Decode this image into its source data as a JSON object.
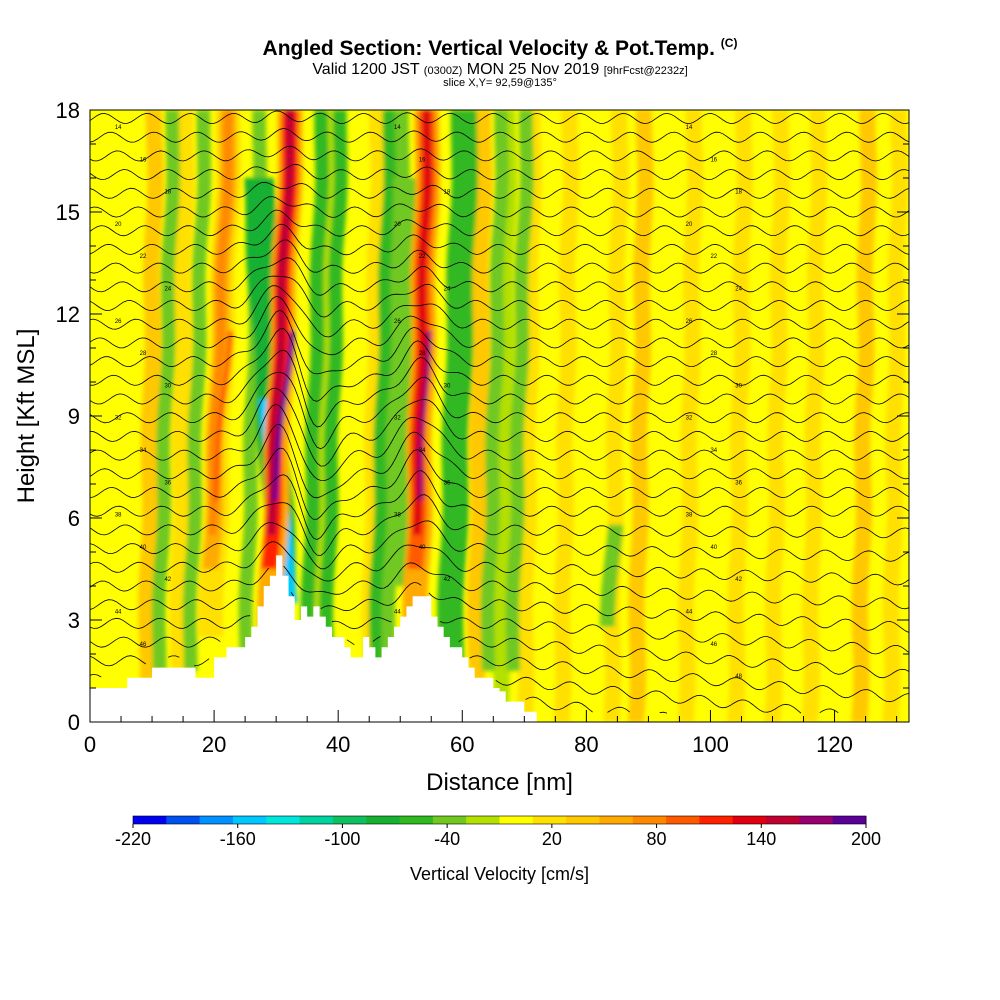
{
  "title": {
    "main": "Angled Section: Vertical Velocity & Pot.Temp.",
    "main_tag": "(C)",
    "valid_prefix": "Valid 1200 JST",
    "valid_z": "(0300Z)",
    "valid_date": "MON 25 Nov 2019",
    "forecast": "[9hrFcst@2232z]",
    "slice": "slice X,Y= 92,59@135°"
  },
  "chart_data": {
    "type": "heatmap",
    "xlabel": "Distance [nm]",
    "ylabel": "Height [Kft MSL]",
    "xlim": [
      0,
      132
    ],
    "ylim": [
      0,
      18
    ],
    "x_ticks": [
      0,
      20,
      40,
      60,
      80,
      100,
      120
    ],
    "y_ticks": [
      0,
      3,
      6,
      9,
      12,
      15,
      18
    ],
    "colorbar": {
      "label": "Vertical Velocity [cm/s]",
      "min": -220,
      "max": 200,
      "step": 20,
      "tick_values": [
        -220,
        -160,
        -100,
        -40,
        20,
        80,
        140,
        200
      ],
      "tick_labels": [
        "-220",
        "-160",
        "-100",
        "-40",
        "20",
        "80",
        "140",
        "200"
      ],
      "colors": [
        "#0000f0",
        "#0050f0",
        "#0090ff",
        "#00c8ff",
        "#00e6dc",
        "#00d2a0",
        "#10c060",
        "#18b030",
        "#30b820",
        "#70c820",
        "#b4e000",
        "#ffff00",
        "#ffe000",
        "#ffc800",
        "#ffaa00",
        "#ff8800",
        "#ff5a00",
        "#ff2000",
        "#e00010",
        "#c00030",
        "#960070",
        "#5a0096"
      ]
    },
    "updrafts": [
      {
        "x_top": 32.5,
        "x_bottom": 29.0,
        "peak_cm_s": 200
      },
      {
        "x_top": 54.5,
        "x_bottom": 52.5,
        "peak_cm_s": 180
      },
      {
        "x_top": 22.5,
        "x_bottom": 19.5,
        "peak_cm_s": 100
      }
    ],
    "downdrafts": [
      {
        "x_top": 27.0,
        "x_bottom": 31.0,
        "min_cm_s": -160
      },
      {
        "x_top": 51.0,
        "x_bottom": 52.0,
        "min_cm_s": -80
      }
    ],
    "terrain_kft": [
      [
        0,
        1.0
      ],
      [
        5,
        1.0
      ],
      [
        6,
        1.3
      ],
      [
        9,
        1.3
      ],
      [
        10,
        1.6
      ],
      [
        16,
        1.6
      ],
      [
        17,
        1.3
      ],
      [
        19,
        1.3
      ],
      [
        20,
        1.9
      ],
      [
        22,
        2.2
      ],
      [
        24,
        2.2
      ],
      [
        25,
        2.5
      ],
      [
        26,
        2.8
      ],
      [
        27,
        3.4
      ],
      [
        28,
        4.0
      ],
      [
        29,
        4.3
      ],
      [
        30,
        4.9
      ],
      [
        31,
        4.3
      ],
      [
        32,
        3.7
      ],
      [
        33,
        3.0
      ],
      [
        34,
        3.4
      ],
      [
        35,
        3.1
      ],
      [
        36,
        3.4
      ],
      [
        37,
        3.1
      ],
      [
        38,
        2.8
      ],
      [
        39,
        2.5
      ],
      [
        40,
        2.5
      ],
      [
        41,
        2.2
      ],
      [
        42,
        1.9
      ],
      [
        43,
        1.9
      ],
      [
        44,
        2.5
      ],
      [
        45,
        2.2
      ],
      [
        46,
        1.9
      ],
      [
        47,
        2.2
      ],
      [
        48,
        2.5
      ],
      [
        49,
        2.8
      ],
      [
        50,
        3.1
      ],
      [
        51,
        3.4
      ],
      [
        52,
        3.7
      ],
      [
        54,
        3.7
      ],
      [
        55,
        3.1
      ],
      [
        56,
        2.8
      ],
      [
        57,
        2.5
      ],
      [
        58,
        2.2
      ],
      [
        59,
        2.2
      ],
      [
        60,
        1.9
      ],
      [
        61,
        1.6
      ],
      [
        62,
        1.3
      ],
      [
        64,
        1.3
      ],
      [
        65,
        1.0
      ],
      [
        66,
        0.9
      ],
      [
        67,
        0.6
      ],
      [
        69,
        0.6
      ],
      [
        70,
        0.3
      ],
      [
        71,
        0.3
      ],
      [
        72,
        0.0
      ],
      [
        132,
        0.0
      ]
    ],
    "theta_contours": {
      "base_kft": 0.7,
      "spacing_kft": 0.55,
      "count": 32,
      "labels": [
        "14",
        "16",
        "18",
        "20",
        "22",
        "24",
        "26",
        "28",
        "30",
        "32",
        "34",
        "36",
        "38",
        "40",
        "42",
        "44",
        "46",
        "48"
      ]
    }
  }
}
